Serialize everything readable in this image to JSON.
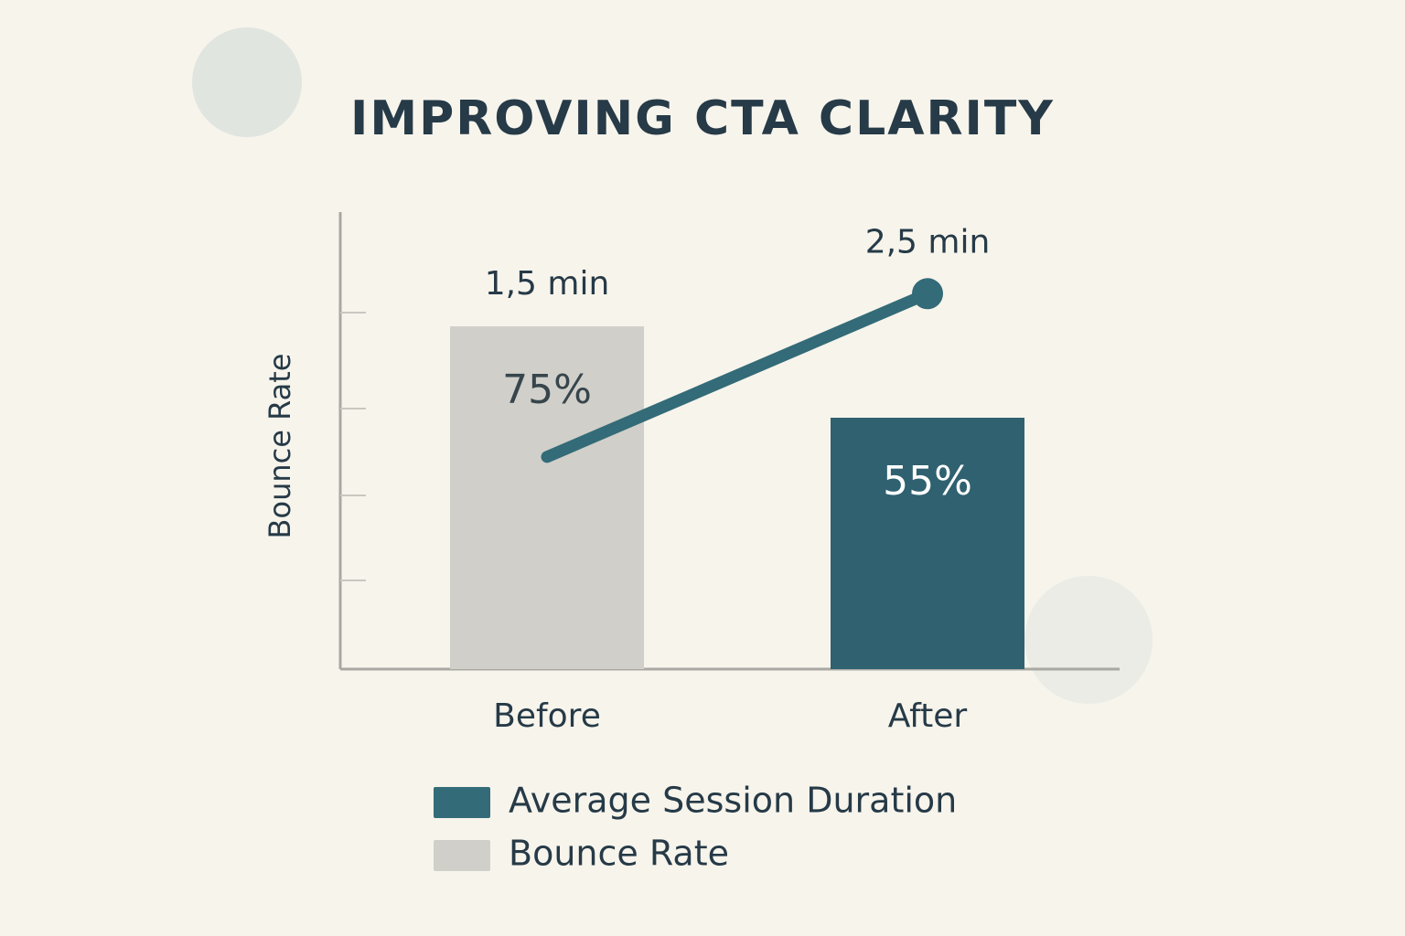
{
  "chart_data": {
    "type": "bar",
    "title": "IMPROVING CTA CLARITY",
    "y_label": "Bounce Rate",
    "categories": [
      "Before",
      "After"
    ],
    "series": [
      {
        "name": "Average Session Duration",
        "type": "line",
        "axis": "y2",
        "color": "#336b78",
        "values": [
          1.5,
          2.5
        ],
        "value_labels": [
          "1,5 min",
          "2,5 min"
        ]
      },
      {
        "name": "Bounce Rate",
        "type": "bar",
        "color": "#d0cfc9",
        "values": [
          75,
          55
        ],
        "value_labels": [
          "75%",
          "55%"
        ],
        "bar_colors": [
          "#d0cfc9",
          "#2f6170"
        ]
      }
    ],
    "ylim": [
      0,
      100
    ],
    "y2lim": [
      0.2,
      3
    ]
  }
}
